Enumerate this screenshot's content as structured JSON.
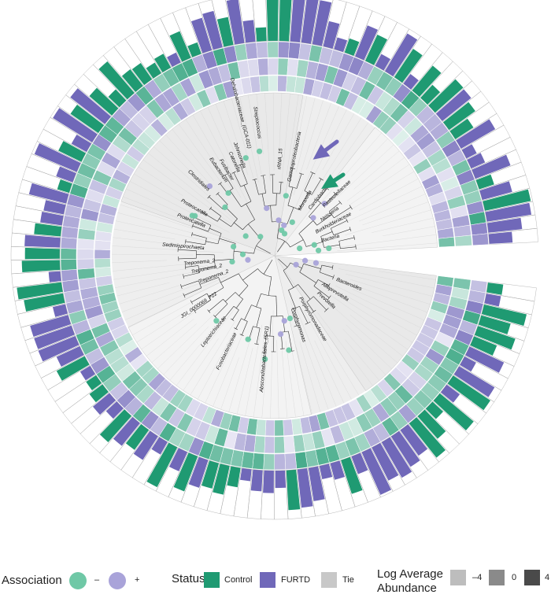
{
  "colors": {
    "control": "#1f9a72",
    "furtd": "#7068b9",
    "tie": "#c8c8c8",
    "assoc_neg": "#6fc8a6",
    "assoc_pos": "#a9a3d9",
    "arrow_furtd": "#7068b9",
    "arrow_control": "#1f9a72",
    "clade_fill": "#eeeeee"
  },
  "tree": {
    "labels": [
      "Streptococcus",
      "Dehalobacteriaceae_(GCA-011)",
      "Johnsonella",
      "Catonella",
      "rRNA_15",
      "Fusibacter",
      "Eubacterium",
      "Clostridiales",
      "Proteocatella",
      "Proteocatella",
      "Sedimispirochaeta",
      "Treponema_2",
      "Treponema_2",
      "Treponema_2",
      "JGI_0000069_P22",
      "Leptotrichiaceae",
      "Fusobacteriaceae",
      "Absconditabacteriales_(SR1)",
      "Porphyromonas",
      "Porphyromonadaceae",
      "Alloprevotella",
      "Bacteroides",
      "Prevotella",
      "Cardiobacterium",
      "Moraxella",
      "Gammaproteobacteria",
      "Pasteurellaceae",
      "Neisseria",
      "Burkholderiaceae",
      "Bacteria"
    ]
  },
  "legend": {
    "association": {
      "title": "Association",
      "neg_label": "–",
      "pos_label": "+"
    },
    "status": {
      "title": "Status",
      "control_label": "Control",
      "furtd_label": "FURTD",
      "tie_label": "Tie"
    },
    "abundance": {
      "title_line1": "Log Average",
      "title_line2": "Abundance",
      "ticks": [
        "–4",
        "0",
        "4"
      ]
    }
  }
}
